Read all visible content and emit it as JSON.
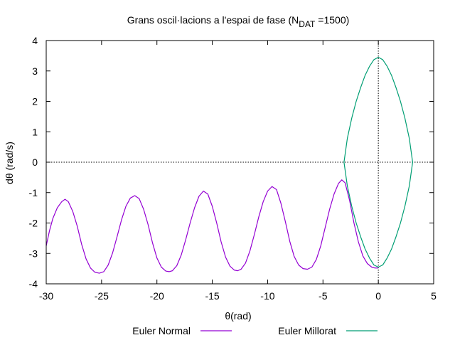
{
  "chart_data": {
    "type": "line",
    "title_main": "Grans oscil·lacions a l'espai de fase (N",
    "title_sub": "DAT",
    "title_tail": " =1500)",
    "xlabel": "θ(rad)",
    "ylabel": "dθ (rad/s)",
    "xlim": [
      -30,
      5
    ],
    "ylim": [
      -4,
      4
    ],
    "xticks": [
      -30,
      -25,
      -20,
      -15,
      -10,
      -5,
      0,
      5
    ],
    "yticks": [
      -4,
      -3,
      -2,
      -1,
      0,
      1,
      2,
      3,
      4
    ],
    "grid": false,
    "zero_axes": true,
    "legend_position": "bottom",
    "series": [
      {
        "name": "Euler Normal",
        "color": "#9400d3",
        "points": [
          [
            -30.0,
            -2.75
          ],
          [
            -29.7,
            -2.25
          ],
          [
            -29.4,
            -1.85
          ],
          [
            -29.0,
            -1.5
          ],
          [
            -28.6,
            -1.3
          ],
          [
            -28.3,
            -1.22
          ],
          [
            -28.0,
            -1.3
          ],
          [
            -27.6,
            -1.62
          ],
          [
            -27.2,
            -2.1
          ],
          [
            -26.8,
            -2.7
          ],
          [
            -26.4,
            -3.18
          ],
          [
            -26.0,
            -3.48
          ],
          [
            -25.6,
            -3.62
          ],
          [
            -25.2,
            -3.65
          ],
          [
            -24.8,
            -3.6
          ],
          [
            -24.4,
            -3.38
          ],
          [
            -24.0,
            -2.98
          ],
          [
            -23.6,
            -2.45
          ],
          [
            -23.2,
            -1.9
          ],
          [
            -22.8,
            -1.45
          ],
          [
            -22.4,
            -1.18
          ],
          [
            -22.0,
            -1.1
          ],
          [
            -21.6,
            -1.2
          ],
          [
            -21.2,
            -1.55
          ],
          [
            -20.8,
            -2.05
          ],
          [
            -20.4,
            -2.65
          ],
          [
            -20.0,
            -3.15
          ],
          [
            -19.6,
            -3.45
          ],
          [
            -19.2,
            -3.58
          ],
          [
            -18.9,
            -3.6
          ],
          [
            -18.6,
            -3.57
          ],
          [
            -18.2,
            -3.4
          ],
          [
            -17.8,
            -3.05
          ],
          [
            -17.4,
            -2.55
          ],
          [
            -17.0,
            -2.0
          ],
          [
            -16.6,
            -1.5
          ],
          [
            -16.2,
            -1.12
          ],
          [
            -15.8,
            -0.95
          ],
          [
            -15.4,
            -1.05
          ],
          [
            -15.0,
            -1.45
          ],
          [
            -14.6,
            -2.0
          ],
          [
            -14.2,
            -2.62
          ],
          [
            -13.8,
            -3.12
          ],
          [
            -13.4,
            -3.42
          ],
          [
            -13.0,
            -3.55
          ],
          [
            -12.7,
            -3.57
          ],
          [
            -12.4,
            -3.52
          ],
          [
            -12.0,
            -3.32
          ],
          [
            -11.6,
            -2.92
          ],
          [
            -11.2,
            -2.38
          ],
          [
            -10.8,
            -1.8
          ],
          [
            -10.4,
            -1.3
          ],
          [
            -10.0,
            -0.95
          ],
          [
            -9.6,
            -0.8
          ],
          [
            -9.2,
            -0.9
          ],
          [
            -8.8,
            -1.35
          ],
          [
            -8.4,
            -1.95
          ],
          [
            -8.0,
            -2.6
          ],
          [
            -7.6,
            -3.1
          ],
          [
            -7.2,
            -3.38
          ],
          [
            -6.8,
            -3.5
          ],
          [
            -6.4,
            -3.52
          ],
          [
            -6.0,
            -3.45
          ],
          [
            -5.6,
            -3.2
          ],
          [
            -5.2,
            -2.75
          ],
          [
            -4.8,
            -2.15
          ],
          [
            -4.4,
            -1.55
          ],
          [
            -4.0,
            -1.05
          ],
          [
            -3.6,
            -0.7
          ],
          [
            -3.3,
            -0.58
          ],
          [
            -3.0,
            -0.68
          ],
          [
            -2.6,
            -1.25
          ],
          [
            -2.2,
            -2.0
          ],
          [
            -1.8,
            -2.62
          ],
          [
            -1.4,
            -3.08
          ],
          [
            -1.0,
            -3.33
          ],
          [
            -0.6,
            -3.45
          ],
          [
            -0.3,
            -3.48
          ],
          [
            0.0,
            -3.48
          ]
        ]
      },
      {
        "name": "Euler Millorat",
        "color": "#009e73",
        "points": [
          [
            -3.1,
            0.0
          ],
          [
            -2.8,
            0.78
          ],
          [
            -2.4,
            1.45
          ],
          [
            -2.0,
            2.0
          ],
          [
            -1.6,
            2.45
          ],
          [
            -1.2,
            2.85
          ],
          [
            -0.8,
            3.15
          ],
          [
            -0.4,
            3.37
          ],
          [
            0.0,
            3.45
          ],
          [
            0.4,
            3.37
          ],
          [
            0.8,
            3.15
          ],
          [
            1.2,
            2.85
          ],
          [
            1.6,
            2.45
          ],
          [
            2.0,
            2.0
          ],
          [
            2.4,
            1.45
          ],
          [
            2.8,
            0.78
          ],
          [
            3.1,
            0.0
          ],
          [
            2.8,
            -0.78
          ],
          [
            2.4,
            -1.45
          ],
          [
            2.0,
            -2.0
          ],
          [
            1.6,
            -2.45
          ],
          [
            1.2,
            -2.85
          ],
          [
            0.8,
            -3.15
          ],
          [
            0.4,
            -3.38
          ],
          [
            0.0,
            -3.45
          ],
          [
            -0.4,
            -3.38
          ],
          [
            -0.8,
            -3.15
          ],
          [
            -1.2,
            -2.85
          ],
          [
            -1.6,
            -2.45
          ],
          [
            -2.0,
            -2.0
          ],
          [
            -2.4,
            -1.45
          ],
          [
            -2.8,
            -0.78
          ],
          [
            -3.1,
            0.0
          ]
        ]
      }
    ]
  }
}
